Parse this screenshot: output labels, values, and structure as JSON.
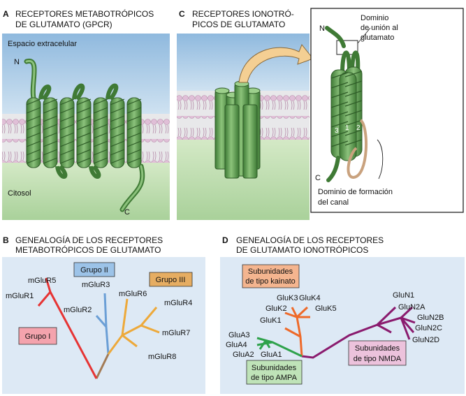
{
  "panelA": {
    "letter": "A",
    "title_line1": "RECEPTORES METABOTRÓPICOS",
    "title_line2": "DE GLUTAMATO (GPCR)",
    "extracellular": "Espacio extracelular",
    "cytosol": "Citosol",
    "n_term": "N",
    "c_term": "C"
  },
  "panelC": {
    "letter": "C",
    "title_line1": "RECEPTORES IONOTRÓ-",
    "title_line2": "PICOS DE GLUTAMATO",
    "binding_line1": "Dominio",
    "binding_line2": "de unión al",
    "binding_line3": "glutamato",
    "channel_line1": "Dominio de formación",
    "channel_line2": "del canal",
    "n_term": "N",
    "c_term": "C",
    "helix1": "1",
    "helix2": "2",
    "helix3": "3"
  },
  "panelB": {
    "letter": "B",
    "title_line1": "GENEALOGÍA DE LOS RECEPTORES",
    "title_line2": "METABOTRÓPICOS DE GLUTAMATO",
    "group1": "Grupo I",
    "group2": "Grupo II",
    "group3": "Grupo III",
    "leaves": [
      "mGluR5",
      "mGluR1",
      "mGluR3",
      "mGluR2",
      "mGluR6",
      "mGluR4",
      "mGluR7",
      "mGluR8"
    ]
  },
  "panelD": {
    "letter": "D",
    "title_line1": "GENEALOGÍA DE LOS RECEPTORES",
    "title_line2": "DE GLUTAMATO IONOTRÓPICOS",
    "kainate_line1": "Subunidades",
    "kainate_line2": "de tipo kainato",
    "ampa_line1": "Subunidades",
    "ampa_line2": "de tipo AMPA",
    "nmda_line1": "Subunidades",
    "nmda_line2": "de tipo NMDA",
    "kainate_leaves": [
      "GluK3",
      "GluK4",
      "GluK2",
      "GluK5",
      "GluK1"
    ],
    "ampa_leaves": [
      "GluA3",
      "GluA4",
      "GluA2",
      "GluA1"
    ],
    "nmda_leaves": [
      "GluN1",
      "GluN2A",
      "GluN2B",
      "GluN2C",
      "GluN2D"
    ]
  },
  "colors": {
    "panel_bg": "#dde9f5",
    "extracellular": "#a9cbe6",
    "cytosol": "#b9dba9",
    "lipid_head": "#d8b4cc",
    "helix_green": "#5e9a4e",
    "group1": "#e63434",
    "group2": "#6b9fd6",
    "group3": "#eda93a",
    "stem": "#a37b55",
    "kainate": "#ee6a2a",
    "ampa": "#2ea24b",
    "nmda": "#8a1b6e"
  }
}
